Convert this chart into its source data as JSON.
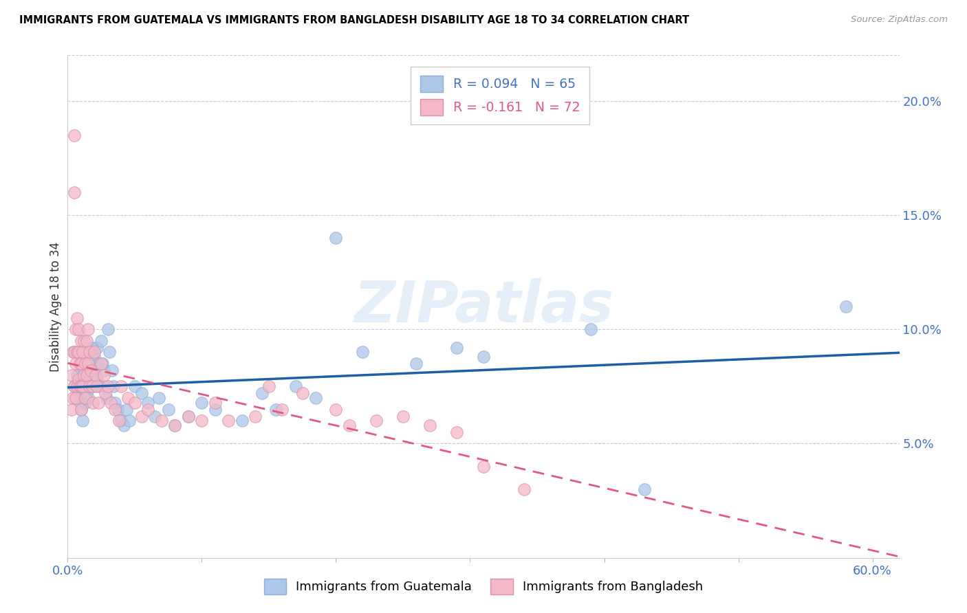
{
  "title": "IMMIGRANTS FROM GUATEMALA VS IMMIGRANTS FROM BANGLADESH DISABILITY AGE 18 TO 34 CORRELATION CHART",
  "source": "Source: ZipAtlas.com",
  "ylabel": "Disability Age 18 to 34",
  "xlim": [
    0.0,
    0.62
  ],
  "ylim": [
    0.0,
    0.22
  ],
  "xtick_positions": [
    0.0,
    0.1,
    0.2,
    0.3,
    0.4,
    0.5,
    0.6
  ],
  "xtick_labels": [
    "0.0%",
    "",
    "",
    "",
    "",
    "",
    "60.0%"
  ],
  "yticks_right": [
    0.05,
    0.1,
    0.15,
    0.2
  ],
  "ytick_right_labels": [
    "5.0%",
    "10.0%",
    "15.0%",
    "20.0%"
  ],
  "legend_r1": "R = 0.094",
  "legend_n1": "N = 65",
  "legend_r2": "R = -0.161",
  "legend_n2": "N = 72",
  "color_blue": "#aec6e8",
  "color_pink": "#f4b8c8",
  "color_blue_line": "#1f5fa6",
  "color_pink_line": "#e05a7a",
  "color_blue_text": "#4472c4",
  "color_pink_text": "#e05a7a",
  "watermark": "ZIPatlas",
  "guatemala_x": [
    0.005,
    0.007,
    0.008,
    0.009,
    0.01,
    0.01,
    0.01,
    0.011,
    0.012,
    0.012,
    0.013,
    0.013,
    0.014,
    0.015,
    0.015,
    0.015,
    0.016,
    0.017,
    0.018,
    0.018,
    0.019,
    0.02,
    0.021,
    0.022,
    0.022,
    0.023,
    0.024,
    0.025,
    0.026,
    0.027,
    0.028,
    0.029,
    0.03,
    0.031,
    0.033,
    0.034,
    0.035,
    0.037,
    0.04,
    0.042,
    0.044,
    0.046,
    0.05,
    0.055,
    0.06,
    0.065,
    0.068,
    0.075,
    0.08,
    0.09,
    0.1,
    0.11,
    0.13,
    0.145,
    0.155,
    0.17,
    0.185,
    0.2,
    0.22,
    0.26,
    0.29,
    0.31,
    0.39,
    0.43,
    0.58
  ],
  "guatemala_y": [
    0.075,
    0.08,
    0.072,
    0.068,
    0.085,
    0.078,
    0.065,
    0.06,
    0.082,
    0.07,
    0.075,
    0.068,
    0.072,
    0.09,
    0.082,
    0.07,
    0.078,
    0.085,
    0.092,
    0.08,
    0.075,
    0.088,
    0.08,
    0.092,
    0.078,
    0.085,
    0.075,
    0.095,
    0.085,
    0.082,
    0.075,
    0.07,
    0.1,
    0.09,
    0.082,
    0.075,
    0.068,
    0.065,
    0.06,
    0.058,
    0.065,
    0.06,
    0.075,
    0.072,
    0.068,
    0.062,
    0.07,
    0.065,
    0.058,
    0.062,
    0.068,
    0.065,
    0.06,
    0.072,
    0.065,
    0.075,
    0.07,
    0.14,
    0.09,
    0.085,
    0.092,
    0.088,
    0.1,
    0.03,
    0.11
  ],
  "bangladesh_x": [
    0.003,
    0.003,
    0.004,
    0.004,
    0.005,
    0.005,
    0.005,
    0.005,
    0.006,
    0.006,
    0.006,
    0.007,
    0.007,
    0.007,
    0.008,
    0.008,
    0.008,
    0.009,
    0.009,
    0.01,
    0.01,
    0.01,
    0.01,
    0.011,
    0.011,
    0.012,
    0.012,
    0.013,
    0.013,
    0.014,
    0.014,
    0.015,
    0.015,
    0.016,
    0.016,
    0.017,
    0.018,
    0.019,
    0.02,
    0.021,
    0.022,
    0.023,
    0.025,
    0.027,
    0.028,
    0.03,
    0.032,
    0.035,
    0.038,
    0.04,
    0.045,
    0.05,
    0.055,
    0.06,
    0.07,
    0.08,
    0.09,
    0.1,
    0.11,
    0.12,
    0.14,
    0.15,
    0.16,
    0.175,
    0.2,
    0.21,
    0.23,
    0.25,
    0.27,
    0.29,
    0.31,
    0.34
  ],
  "bangladesh_y": [
    0.08,
    0.065,
    0.09,
    0.07,
    0.185,
    0.16,
    0.09,
    0.075,
    0.1,
    0.085,
    0.07,
    0.105,
    0.09,
    0.075,
    0.1,
    0.09,
    0.078,
    0.085,
    0.075,
    0.095,
    0.085,
    0.075,
    0.065,
    0.09,
    0.075,
    0.095,
    0.08,
    0.085,
    0.07,
    0.095,
    0.08,
    0.1,
    0.085,
    0.09,
    0.075,
    0.082,
    0.075,
    0.068,
    0.09,
    0.08,
    0.075,
    0.068,
    0.085,
    0.08,
    0.072,
    0.075,
    0.068,
    0.065,
    0.06,
    0.075,
    0.07,
    0.068,
    0.062,
    0.065,
    0.06,
    0.058,
    0.062,
    0.06,
    0.068,
    0.06,
    0.062,
    0.075,
    0.065,
    0.072,
    0.065,
    0.058,
    0.06,
    0.062,
    0.058,
    0.055,
    0.04,
    0.03
  ]
}
